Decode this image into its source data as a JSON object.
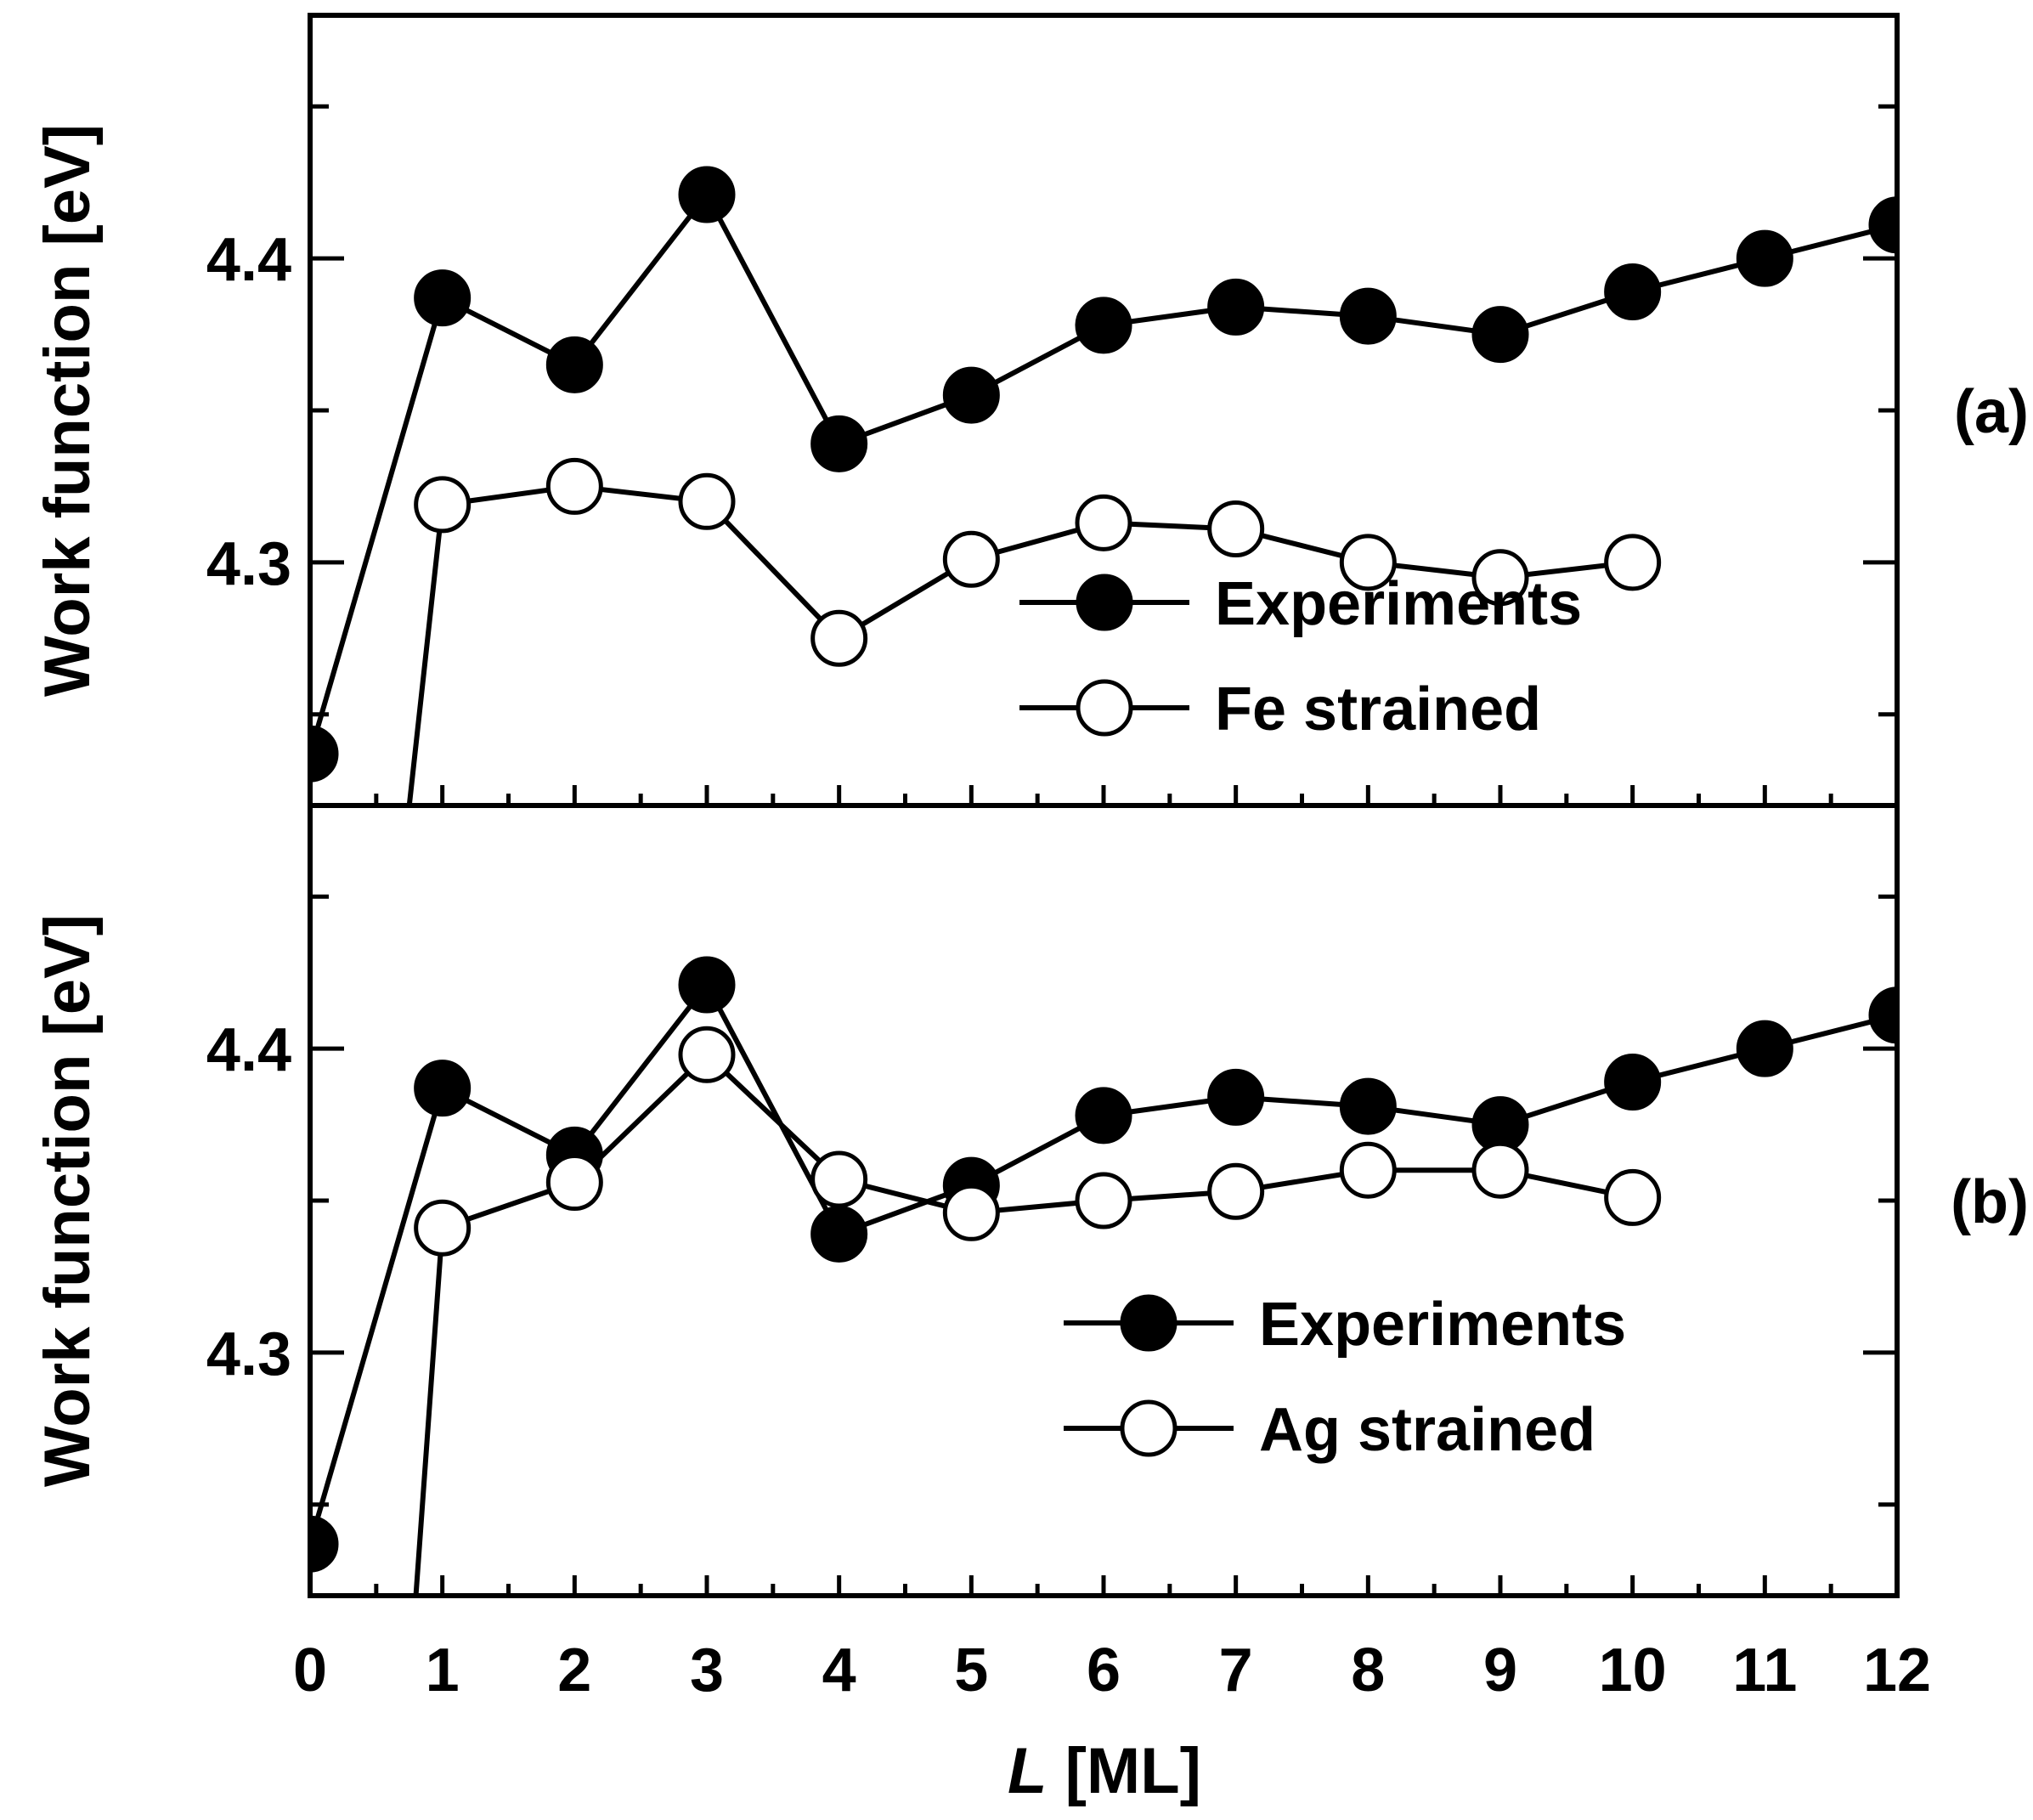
{
  "figure": {
    "xlabel_italic": "L",
    "xlabel_rest": " [ML]",
    "x_ticks": [
      "0",
      "1",
      "2",
      "3",
      "4",
      "5",
      "6",
      "7",
      "8",
      "9",
      "10",
      "11",
      "12"
    ]
  },
  "chart_data": [
    {
      "type": "line",
      "panel_label": "(a)",
      "xlabel": "L [ML]",
      "ylabel": "Work function [eV]",
      "xlim": [
        0,
        12
      ],
      "ylim": [
        4.22,
        4.48
      ],
      "y_major_ticks": [
        4.3,
        4.4
      ],
      "y_tick_labels": [
        "4.3",
        "4.4"
      ],
      "y_minor_ticks": [
        4.25,
        4.35,
        4.45
      ],
      "series": [
        {
          "name": "Experiments",
          "marker": "filled-circle",
          "x": [
            0,
            1,
            2,
            3,
            4,
            5,
            6,
            7,
            8,
            9,
            10,
            11,
            12
          ],
          "y": [
            4.237,
            4.387,
            4.365,
            4.421,
            4.339,
            4.355,
            4.378,
            4.384,
            4.381,
            4.375,
            4.389,
            4.4,
            4.411
          ]
        },
        {
          "name": "Fe strained",
          "marker": "open-circle",
          "x": [
            1,
            2,
            3,
            4,
            5,
            6,
            7,
            8,
            9,
            10
          ],
          "y": [
            4.319,
            4.325,
            4.32,
            4.275,
            4.301,
            4.313,
            4.311,
            4.3,
            4.295,
            4.3
          ],
          "lead_in": {
            "x": 0.75,
            "y": 4.22
          }
        }
      ],
      "legend": {
        "position": "lower-right",
        "entries": [
          "Experiments",
          "Fe strained"
        ]
      }
    },
    {
      "type": "line",
      "panel_label": "(b)",
      "xlabel": "L [ML]",
      "ylabel": "Work function [eV]",
      "xlim": [
        0,
        12
      ],
      "ylim": [
        4.22,
        4.48
      ],
      "y_major_ticks": [
        4.3,
        4.4
      ],
      "y_tick_labels": [
        "4.3",
        "4.4"
      ],
      "y_minor_ticks": [
        4.25,
        4.35,
        4.45
      ],
      "series": [
        {
          "name": "Experiments",
          "marker": "filled-circle",
          "x": [
            0,
            1,
            2,
            3,
            4,
            5,
            6,
            7,
            8,
            9,
            10,
            11,
            12
          ],
          "y": [
            4.237,
            4.387,
            4.365,
            4.421,
            4.339,
            4.355,
            4.378,
            4.384,
            4.381,
            4.375,
            4.389,
            4.4,
            4.411
          ]
        },
        {
          "name": "Ag strained",
          "marker": "open-circle",
          "x": [
            1,
            2,
            3,
            4,
            5,
            6,
            7,
            8,
            9,
            10
          ],
          "y": [
            4.341,
            4.356,
            4.398,
            4.357,
            4.346,
            4.35,
            4.353,
            4.36,
            4.36,
            4.351
          ],
          "lead_in": {
            "x": 0.8,
            "y": 4.22
          }
        }
      ],
      "legend": {
        "position": "lower-right",
        "entries": [
          "Experiments",
          "Ag strained"
        ]
      }
    }
  ]
}
